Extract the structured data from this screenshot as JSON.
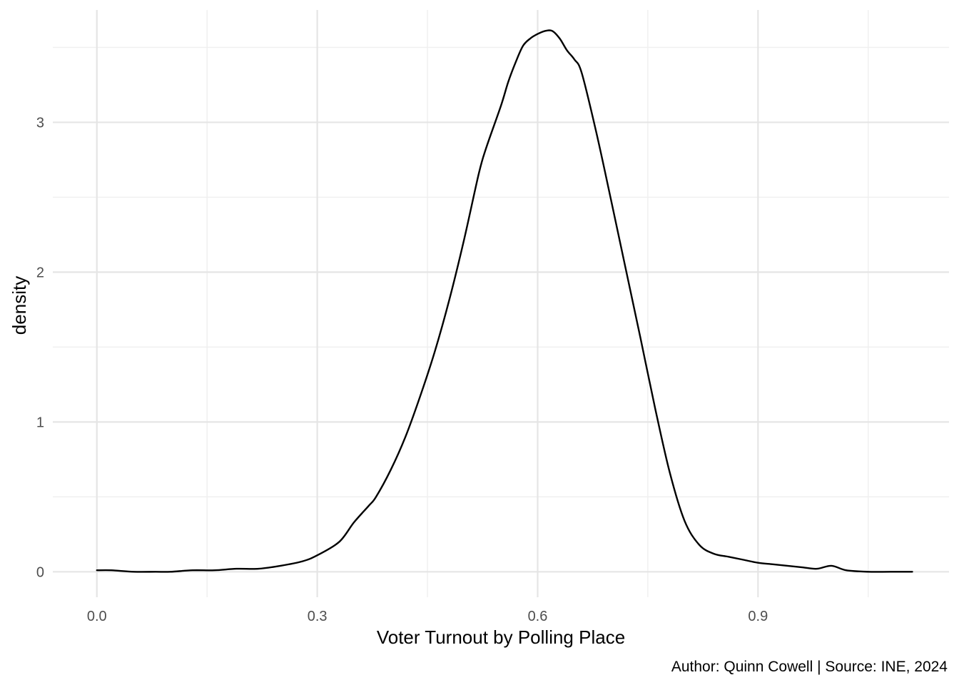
{
  "chart_data": {
    "type": "line",
    "title": "",
    "xlabel": "Voter Turnout by Polling Place",
    "ylabel": "density",
    "caption": "Author: Quinn Cowell | Source: INE, 2024",
    "xlim": [
      -0.06,
      1.16
    ],
    "ylim": [
      -0.17,
      3.75
    ],
    "x_ticks": [
      0.0,
      0.3,
      0.6,
      0.9
    ],
    "x_tick_labels": [
      "0.0",
      "0.3",
      "0.6",
      "0.9"
    ],
    "x_minor_ticks": [
      0.15,
      0.45,
      0.75,
      1.05
    ],
    "y_ticks": [
      0,
      1,
      2,
      3
    ],
    "y_tick_labels": [
      "0",
      "1",
      "2",
      "3"
    ],
    "y_minor_ticks": [
      0.5,
      1.5,
      2.5,
      3.5
    ],
    "grid": true,
    "series": [
      {
        "x": [
          0.0,
          0.02,
          0.05,
          0.08,
          0.1,
          0.13,
          0.16,
          0.19,
          0.22,
          0.25,
          0.28,
          0.3,
          0.33,
          0.35,
          0.37,
          0.38,
          0.4,
          0.42,
          0.44,
          0.46,
          0.48,
          0.5,
          0.52,
          0.53,
          0.55,
          0.56,
          0.57,
          0.58,
          0.59,
          0.6,
          0.61,
          0.62,
          0.63,
          0.64,
          0.65,
          0.66,
          0.68,
          0.7,
          0.72,
          0.74,
          0.76,
          0.78,
          0.8,
          0.82,
          0.84,
          0.86,
          0.88,
          0.9,
          0.92,
          0.94,
          0.96,
          0.98,
          1.0,
          1.02,
          1.05,
          1.08,
          1.11
        ],
        "y": [
          0.01,
          0.01,
          0.0,
          0.0,
          0.0,
          0.01,
          0.01,
          0.02,
          0.02,
          0.04,
          0.07,
          0.11,
          0.2,
          0.33,
          0.44,
          0.5,
          0.68,
          0.9,
          1.17,
          1.47,
          1.82,
          2.22,
          2.66,
          2.83,
          3.11,
          3.27,
          3.4,
          3.51,
          3.56,
          3.59,
          3.61,
          3.61,
          3.56,
          3.48,
          3.42,
          3.33,
          2.93,
          2.48,
          2.02,
          1.56,
          1.09,
          0.66,
          0.34,
          0.18,
          0.12,
          0.1,
          0.08,
          0.06,
          0.05,
          0.04,
          0.03,
          0.02,
          0.04,
          0.01,
          0.0,
          0.0,
          0.0
        ]
      }
    ]
  }
}
